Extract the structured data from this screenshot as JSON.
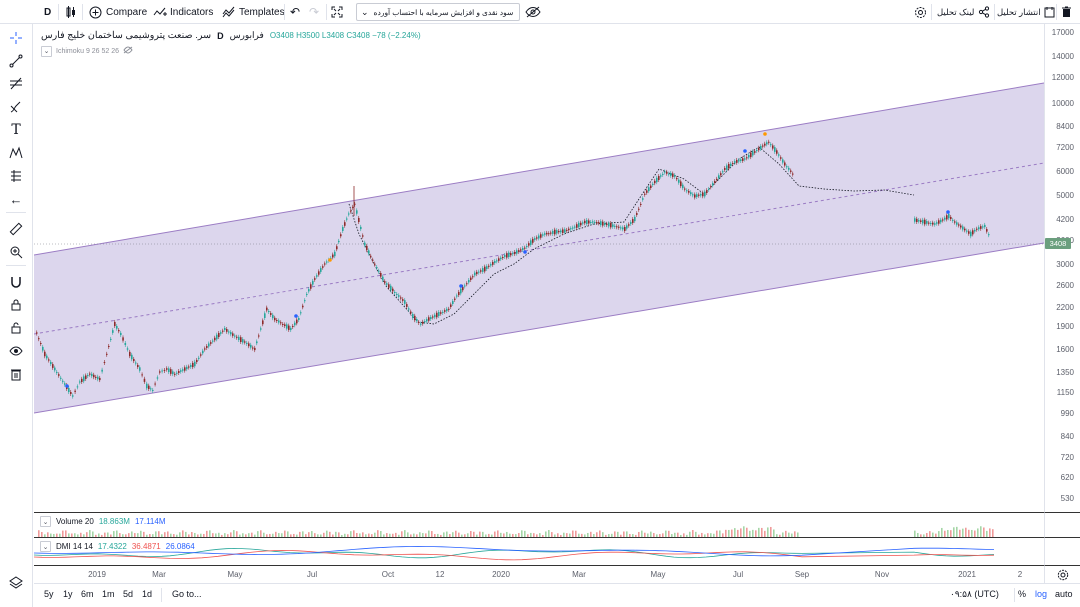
{
  "toolbar": {
    "interval": "D",
    "compare_label": "Compare",
    "indicators_label": "Indicators",
    "templates_label": "Templates",
    "layout_name": "سود نقدی و افزایش سرمایه با احتساب آورده",
    "analysis_link_label": "لینک تحلیل",
    "publish_label": "انتشار تحلیل"
  },
  "legend": {
    "symbol_name": "سر. صنعت پتروشیمی ساختمان خلیج فارس",
    "interval": "D",
    "exchange": "فرابورس",
    "ohlc": "O3408 H3500 L3408 C3408 −78 (−2.24%)",
    "indicator": "Ichimoku 9 26 52 26"
  },
  "price_axis": {
    "ticks": [
      "17000",
      "14000",
      "12000",
      "10000",
      "8400",
      "7200",
      "6000",
      "5000",
      "4200",
      "3600",
      "3000",
      "2600",
      "2200",
      "1900",
      "1600",
      "1350",
      "1150",
      "990",
      "840",
      "720",
      "620",
      "530"
    ],
    "last_price": "3408"
  },
  "volume": {
    "label": "Volume 20",
    "value1": "18.863M",
    "value2": "17.114M",
    "color1": "#26a69a",
    "color2": "#2962ff"
  },
  "dmi": {
    "label": "DMI 14 14",
    "v1": "17.4322",
    "v2": "36.4871",
    "v3": "26.0864",
    "color1": "#26a69a",
    "color2": "#ef5350",
    "color3": "#2962ff"
  },
  "time_axis": {
    "ticks": [
      "2019",
      "Mar",
      "May",
      "Jul",
      "Oct",
      "12",
      "2020",
      "Mar",
      "May",
      "Jul",
      "Sep",
      "Nov",
      "2021",
      "2"
    ]
  },
  "bottombar": {
    "ranges": [
      "5y",
      "1y",
      "6m",
      "1m",
      "5d",
      "1d"
    ],
    "goto_label": "Go to...",
    "clock": "۰۹:۵۸ (UTC)",
    "percent_label": "%",
    "log_label": "log",
    "auto_label": "auto"
  },
  "colors": {
    "channel_fill": "#d6cfea",
    "channel_line": "#9b7cc4",
    "up": "#26a69a",
    "down": "#8d2a2a",
    "accent": "#2962ff"
  }
}
